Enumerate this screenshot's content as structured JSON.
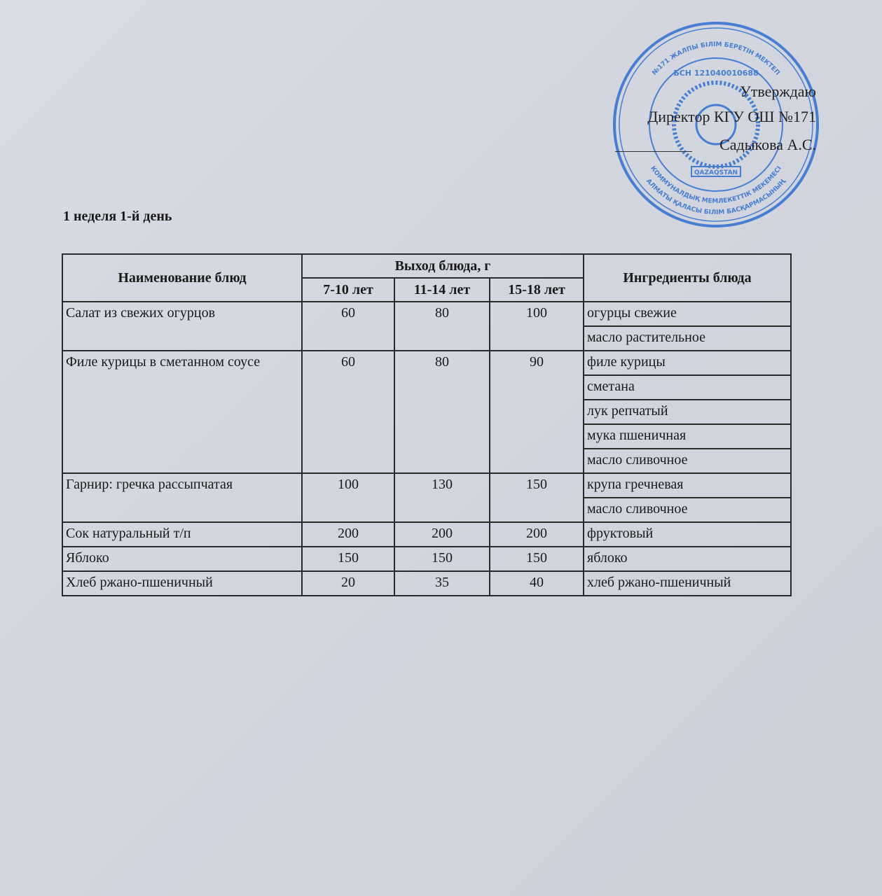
{
  "stamp": {
    "outer_text": "№171 ЖАЛПЫ БІЛІМ БЕРЕТІН МЕКТЕП",
    "bin": "БСН 121040010688",
    "bottom_text": "АЛМАТЫ ҚАЛАСЫ БІЛІМ БАСҚАРМАСЫНЫҢ КОММУНАЛДЫҚ МЕМЛЕКЕТТІК МЕКЕМЕСІ",
    "emblem_label": "QAZAQSTAN",
    "color": "#2f6fd0"
  },
  "approval": {
    "line1": "Утверждаю",
    "line2": "Директор КГУ ОШ №171",
    "line3": "Садыкова А.С."
  },
  "title": "1 неделя 1-й день",
  "table": {
    "headers": {
      "name": "Наименование блюд",
      "yield": "Выход блюда, г",
      "ages": [
        "7-10 лет",
        "11-14 лет",
        "15-18 лет"
      ],
      "ingredients": "Ингредиенты блюда"
    },
    "rows": [
      {
        "name": "Салат из свежих огурцов",
        "values": [
          "60",
          "80",
          "100"
        ],
        "ingredients": [
          "огурцы свежие",
          "масло растительное"
        ]
      },
      {
        "name": "Филе курицы в сметанном соусе",
        "values": [
          "60",
          "80",
          "90"
        ],
        "ingredients": [
          "филе курицы",
          "сметана",
          "лук репчатый",
          "мука пшеничная",
          "масло сливочное"
        ]
      },
      {
        "name": "Гарнир: гречка рассыпчатая",
        "values": [
          "100",
          "130",
          "150"
        ],
        "ingredients": [
          "крупа гречневая",
          "масло сливочное"
        ]
      },
      {
        "name": "Сок натуральный т/п",
        "values": [
          "200",
          "200",
          "200"
        ],
        "ingredients": [
          "фруктовый"
        ]
      },
      {
        "name": "Яблоко",
        "values": [
          "150",
          "150",
          "150"
        ],
        "ingredients": [
          "яблоко"
        ]
      },
      {
        "name": "Хлеб ржано-пшеничный",
        "values": [
          "20",
          "35",
          "40"
        ],
        "ingredients": [
          "хлеб ржано-пшеничный"
        ]
      }
    ]
  }
}
